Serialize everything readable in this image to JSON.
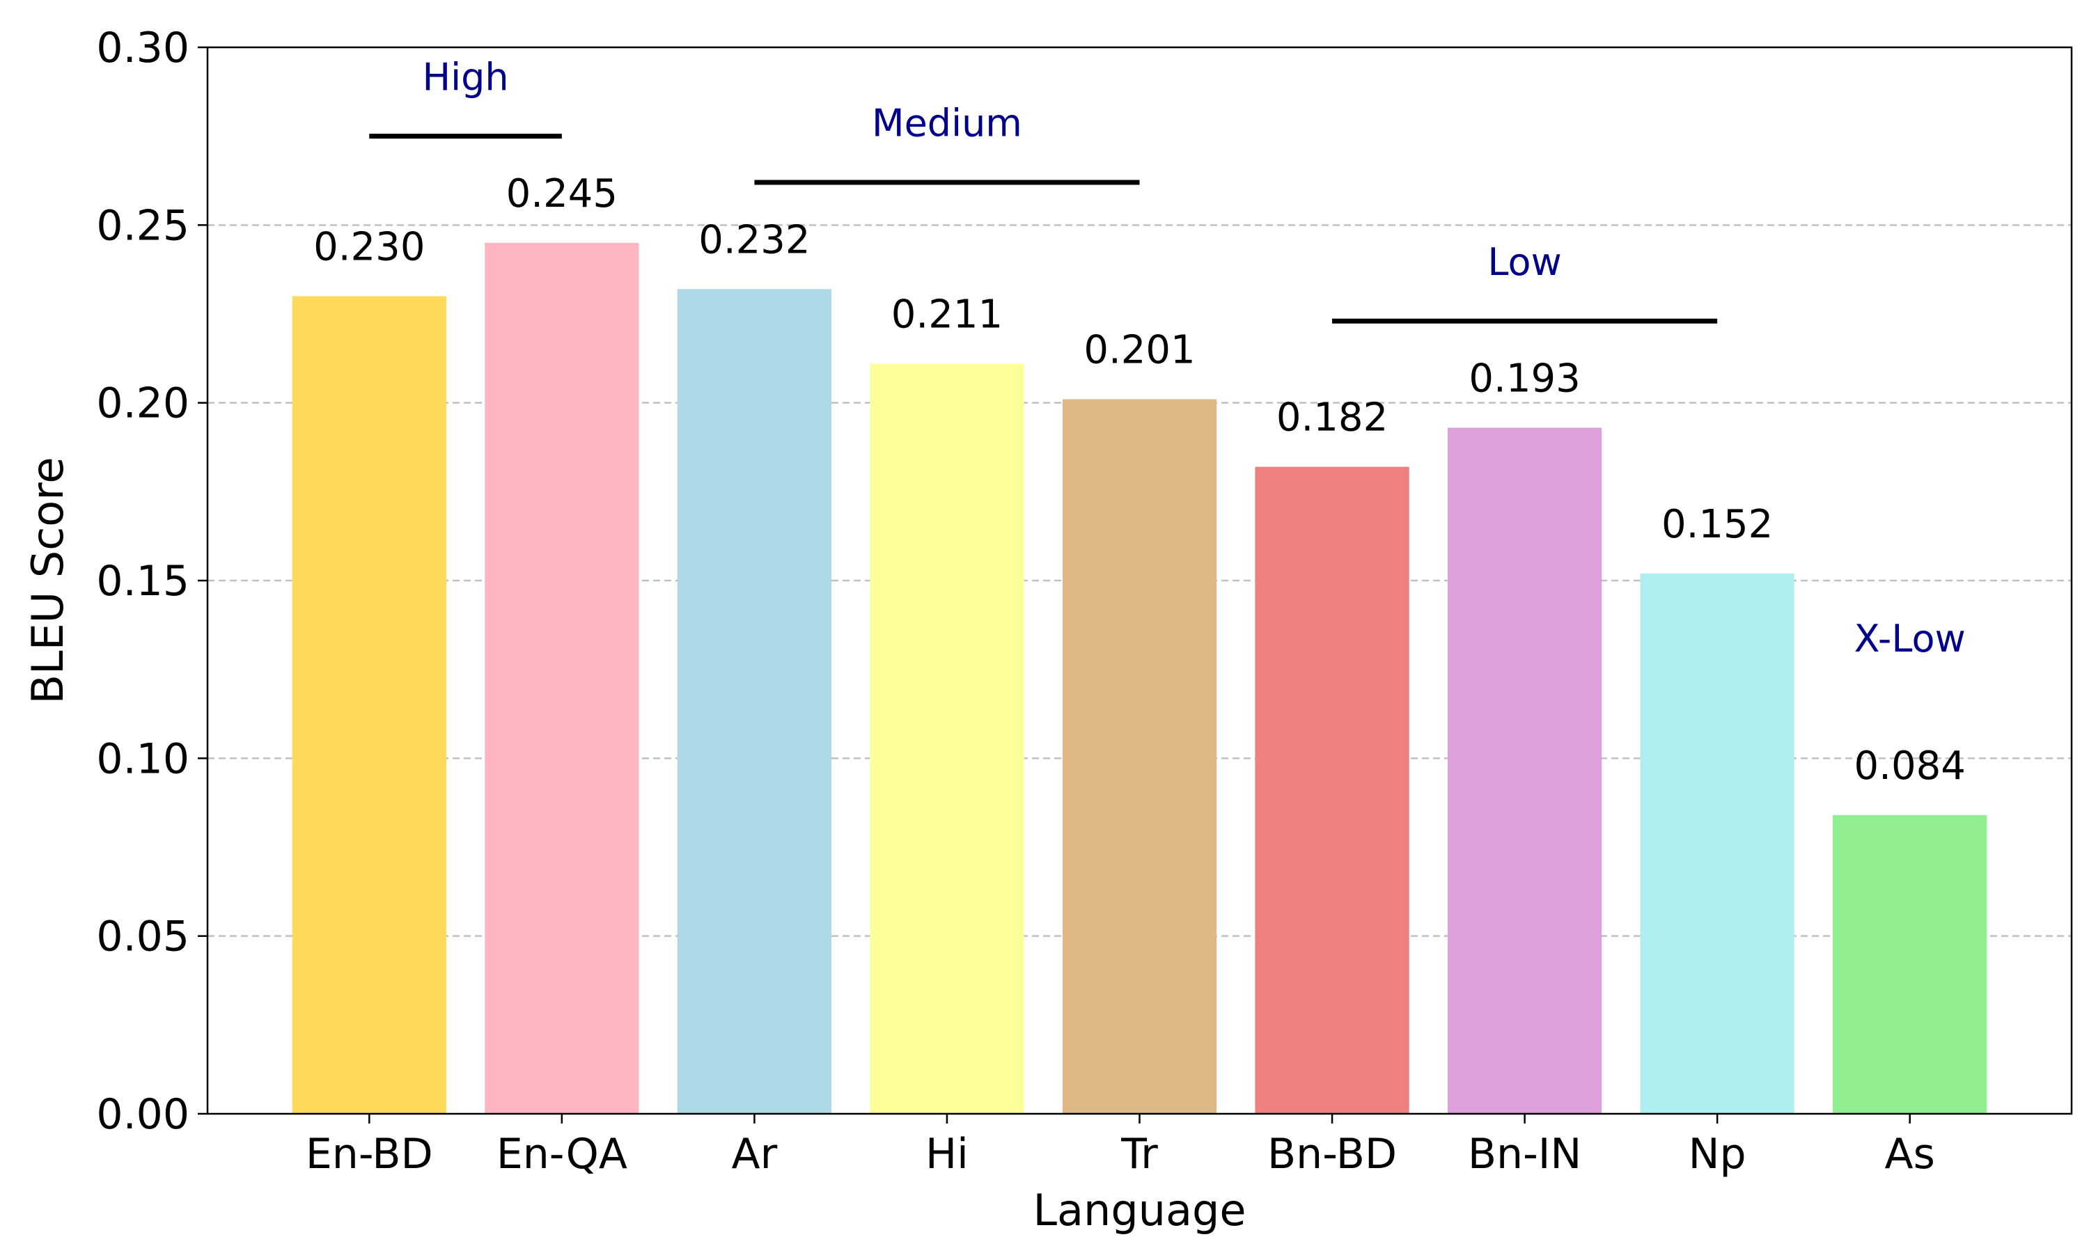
{
  "chart_data": {
    "type": "bar",
    "xlabel": "Language",
    "ylabel": "BLEU Score",
    "ylim": [
      0,
      0.3
    ],
    "yticks": [
      "0.00",
      "0.05",
      "0.10",
      "0.15",
      "0.20",
      "0.25",
      "0.30"
    ],
    "categories": [
      "En-BD",
      "En-QA",
      "Ar",
      "Hi",
      "Tr",
      "Bn-BD",
      "Bn-IN",
      "Np",
      "As"
    ],
    "values": [
      0.23,
      0.245,
      0.232,
      0.211,
      0.201,
      0.182,
      0.193,
      0.152,
      0.084
    ],
    "value_labels": [
      "0.230",
      "0.245",
      "0.232",
      "0.211",
      "0.201",
      "0.182",
      "0.193",
      "0.152",
      "0.084"
    ],
    "colors": [
      "#ffd95a",
      "#ffb6c1",
      "#add8e6",
      "#ffff99",
      "#deb887",
      "#f08080",
      "#dda0dd",
      "#afeeee",
      "#90ee90"
    ],
    "grid": "y-dashed",
    "groups": [
      {
        "label": "High",
        "start": 0,
        "end": 1,
        "bar_y": 0.275,
        "label_y": 0.288
      },
      {
        "label": "Medium",
        "start": 2,
        "end": 4,
        "bar_y": 0.262,
        "label_y": 0.275
      },
      {
        "label": "Low",
        "start": 5,
        "end": 7,
        "bar_y": 0.223,
        "label_y": 0.236
      },
      {
        "label": "X-Low",
        "start": 8,
        "end": 8,
        "bar_y": null,
        "label_y": 0.13
      }
    ],
    "group_label_color": "#00008b"
  }
}
